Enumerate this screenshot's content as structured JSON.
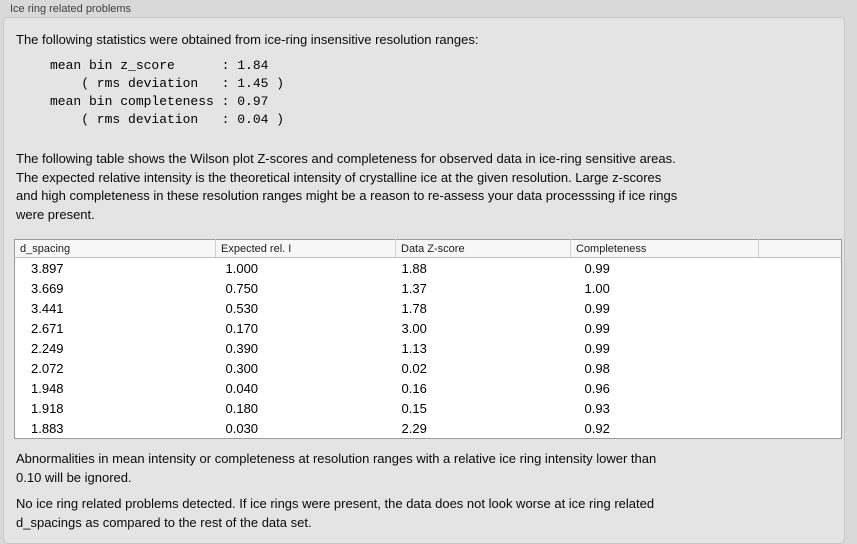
{
  "panel": {
    "title": "Ice ring related problems",
    "background_color": "#e4e4e4",
    "outer_background_color": "#d9d9d9"
  },
  "intro_text": "The following statistics were obtained from ice-ring insensitive resolution ranges:",
  "stats_block": "mean bin z_score      : 1.84\n    ( rms deviation   : 1.45 )\nmean bin completeness : 0.97\n    ( rms deviation   : 0.04 )",
  "stats": {
    "mean_bin_z_score": "1.84",
    "z_score_rms_deviation": "1.45",
    "mean_bin_completeness": "0.97",
    "completeness_rms_deviation": "0.04"
  },
  "table_intro": "The following table shows the Wilson plot Z-scores and completeness for observed data in ice-ring sensitive areas.\nThe expected relative intensity is the theoretical intensity of crystalline ice at the given resolution. Large z-scores\nand high completeness in these resolution ranges might be a reason to re-assess your data processsing if ice rings\nwere present.",
  "chart_data": {
    "type": "table",
    "columns": [
      "d_spacing",
      "Expected rel. I",
      "Data Z-score",
      "Completeness"
    ],
    "rows": [
      [
        "3.897",
        "1.000",
        "1.88",
        "0.99"
      ],
      [
        "3.669",
        "0.750",
        "1.37",
        "1.00"
      ],
      [
        "3.441",
        "0.530",
        "1.78",
        "0.99"
      ],
      [
        "2.671",
        "0.170",
        "3.00",
        "0.99"
      ],
      [
        "2.249",
        "0.390",
        "1.13",
        "0.99"
      ],
      [
        "2.072",
        "0.300",
        "0.02",
        "0.98"
      ],
      [
        "1.948",
        "0.040",
        "0.16",
        "0.96"
      ],
      [
        "1.918",
        "0.180",
        "0.15",
        "0.93"
      ],
      [
        "1.883",
        "0.030",
        "2.29",
        "0.92"
      ]
    ]
  },
  "footnote": "Abnormalities in mean intensity or completeness at resolution ranges with a relative ice ring intensity lower than\n0.10 will be ignored.",
  "conclusion": "No ice ring related problems detected. If ice rings were present, the data does not look worse at ice ring related\nd_spacings as compared to the rest of the data set."
}
